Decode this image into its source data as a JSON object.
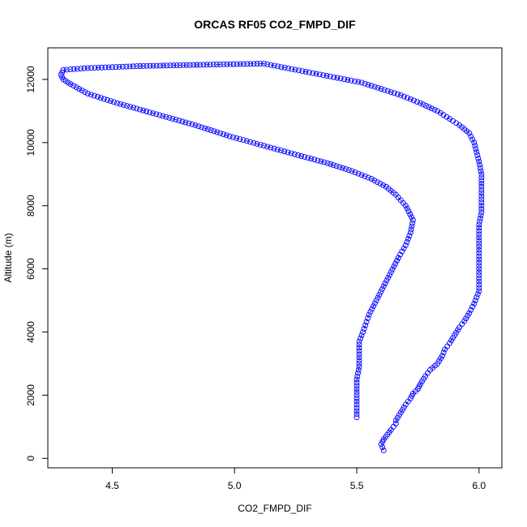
{
  "chart_data": {
    "type": "scatter",
    "title": "ORCAS RF05 CO2_FMPD_DIF",
    "xlabel": "CO2_FMPD_DIF",
    "ylabel": "Altitude (m)",
    "xlim": [
      4.2366,
      6.0934
    ],
    "ylim": [
      -300,
      13000
    ],
    "xticks": [
      {
        "value": 4.5,
        "label": "4.5"
      },
      {
        "value": 5.0,
        "label": "5.0"
      },
      {
        "value": 5.5,
        "label": "5.5"
      },
      {
        "value": 6.0,
        "label": "6.0"
      }
    ],
    "yticks": [
      {
        "value": 0,
        "label": "0"
      },
      {
        "value": 2000,
        "label": "2000"
      },
      {
        "value": 4000,
        "label": "4000"
      },
      {
        "value": 6000,
        "label": "6000"
      },
      {
        "value": 8000,
        "label": "8000"
      },
      {
        "value": 10000,
        "label": "10000"
      },
      {
        "value": 12000,
        "label": "12000"
      }
    ],
    "marker": "open-circle",
    "line_style": "dash-dot",
    "color": "#0000ff",
    "series": [
      {
        "points": [
          [
            5.61,
            250
          ],
          [
            5.6,
            450
          ],
          [
            5.61,
            600
          ],
          [
            5.64,
            900
          ],
          [
            5.66,
            1100
          ],
          [
            5.66,
            1200
          ],
          [
            5.68,
            1450
          ],
          [
            5.7,
            1700
          ],
          [
            5.72,
            1900
          ],
          [
            5.73,
            2050
          ],
          [
            5.75,
            2200
          ],
          [
            5.76,
            2350
          ],
          [
            5.78,
            2600
          ],
          [
            5.8,
            2800
          ],
          [
            5.83,
            3000
          ],
          [
            5.85,
            3250
          ],
          [
            5.86,
            3450
          ],
          [
            5.88,
            3650
          ],
          [
            5.9,
            3900
          ],
          [
            5.92,
            4150
          ],
          [
            5.94,
            4350
          ],
          [
            5.96,
            4600
          ],
          [
            5.98,
            4900
          ],
          [
            6.0,
            5300
          ],
          [
            6.0,
            5600
          ],
          [
            6.0,
            5900
          ],
          [
            6.0,
            6200
          ],
          [
            6.0,
            6600
          ],
          [
            6.0,
            7000
          ],
          [
            6.0,
            7400
          ],
          [
            6.01,
            7800
          ],
          [
            6.01,
            8200
          ],
          [
            6.01,
            8600
          ],
          [
            6.01,
            9000
          ],
          [
            6.0,
            9400
          ],
          [
            5.99,
            9700
          ],
          [
            5.98,
            10000
          ],
          [
            5.96,
            10300
          ],
          [
            5.92,
            10550
          ],
          [
            5.88,
            10750
          ],
          [
            5.83,
            11000
          ],
          [
            5.76,
            11250
          ],
          [
            5.68,
            11500
          ],
          [
            5.6,
            11700
          ],
          [
            5.52,
            11900
          ],
          [
            5.42,
            12050
          ],
          [
            5.32,
            12200
          ],
          [
            5.22,
            12350
          ],
          [
            5.12,
            12500
          ],
          [
            4.9,
            12470
          ],
          [
            4.6,
            12420
          ],
          [
            4.4,
            12360
          ],
          [
            4.3,
            12300
          ],
          [
            4.29,
            12150
          ],
          [
            4.3,
            12000
          ],
          [
            4.33,
            11850
          ],
          [
            4.4,
            11550
          ],
          [
            4.52,
            11250
          ],
          [
            4.68,
            10900
          ],
          [
            4.84,
            10550
          ],
          [
            4.98,
            10200
          ],
          [
            5.12,
            9900
          ],
          [
            5.26,
            9600
          ],
          [
            5.38,
            9350
          ],
          [
            5.48,
            9100
          ],
          [
            5.56,
            8850
          ],
          [
            5.62,
            8600
          ],
          [
            5.66,
            8350
          ],
          [
            5.7,
            8000
          ],
          [
            5.73,
            7550
          ],
          [
            5.72,
            7150
          ],
          [
            5.7,
            6750
          ],
          [
            5.67,
            6350
          ],
          [
            5.64,
            5900
          ],
          [
            5.61,
            5450
          ],
          [
            5.58,
            5000
          ],
          [
            5.55,
            4550
          ],
          [
            5.53,
            4100
          ],
          [
            5.51,
            3700
          ],
          [
            5.51,
            3300
          ],
          [
            5.51,
            2900
          ],
          [
            5.5,
            2500
          ],
          [
            5.5,
            2100
          ],
          [
            5.5,
            1700
          ],
          [
            5.5,
            1300
          ]
        ]
      }
    ]
  }
}
